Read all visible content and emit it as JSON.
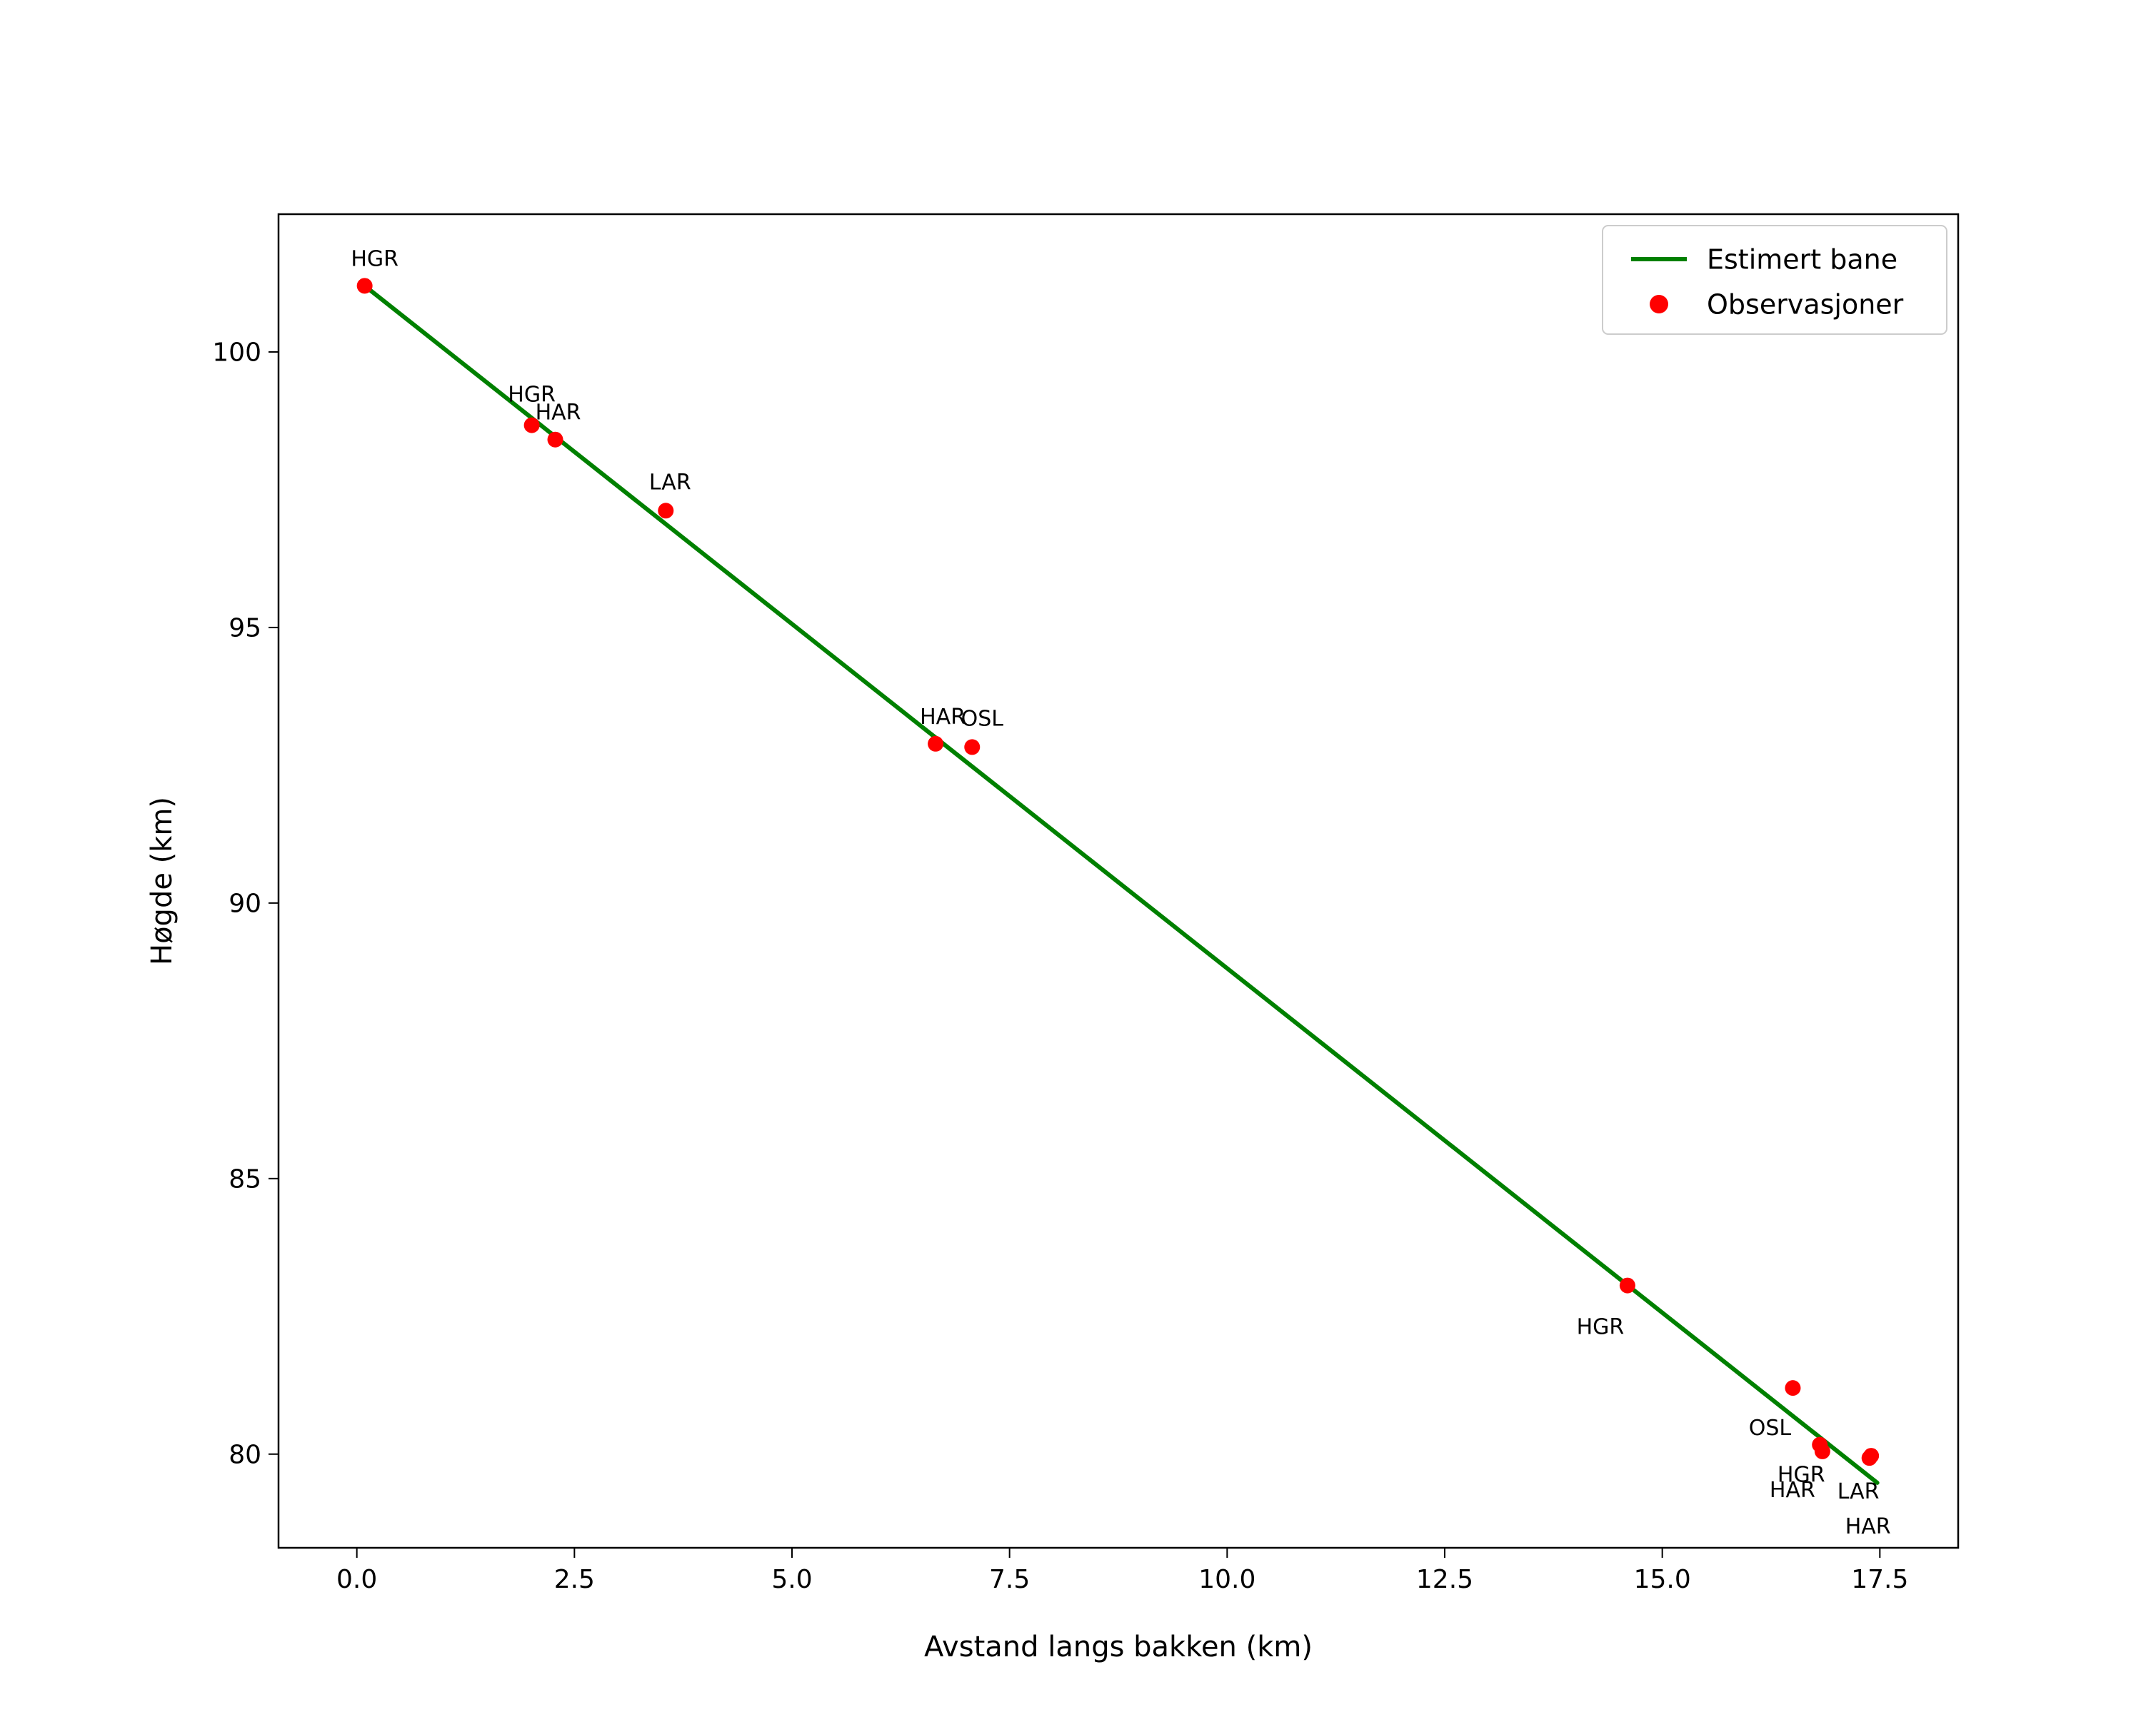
{
  "figure": {
    "background": "#ffffff"
  },
  "chart_data": {
    "type": "scatter",
    "title": "",
    "xlabel": "Avstand langs bakken (km)",
    "ylabel": "Høgde (km)",
    "xlim": [
      -0.9,
      18.4
    ],
    "ylim": [
      78.3,
      102.5
    ],
    "grid": false,
    "xticks": [
      "0.0",
      "2.5",
      "5.0",
      "7.5",
      "10.0",
      "12.5",
      "15.0",
      "17.5"
    ],
    "xtick_values": [
      0.0,
      2.5,
      5.0,
      7.5,
      10.0,
      12.5,
      15.0,
      17.5
    ],
    "yticks": [
      "80",
      "85",
      "90",
      "95",
      "100"
    ],
    "ytick_values": [
      80,
      85,
      90,
      95,
      100
    ],
    "legend": {
      "position": "top-right",
      "entries": [
        {
          "label": "Estimert bane",
          "glyph": "line",
          "color": "#008000"
        },
        {
          "label": "Observasjoner",
          "glyph": "dot",
          "color": "#ff0000"
        }
      ]
    },
    "line_series": {
      "name": "Estimert bane",
      "color": "#008000",
      "width": 6,
      "x": [
        0.09,
        17.47
      ],
      "y": [
        101.2,
        79.48
      ]
    },
    "scatter_series": {
      "name": "Observasjoner",
      "color": "#ff0000",
      "marker_radius": 11,
      "points": [
        {
          "x": 0.09,
          "y": 101.2,
          "label": "HGR",
          "ox": 14,
          "oy": -28
        },
        {
          "x": 2.01,
          "y": 98.67,
          "label": "HGR",
          "ox": 0,
          "oy": -33
        },
        {
          "x": 2.28,
          "y": 98.41,
          "label": "HAR",
          "ox": 4,
          "oy": -28
        },
        {
          "x": 3.55,
          "y": 97.12,
          "label": "LAR",
          "ox": 6,
          "oy": -30
        },
        {
          "x": 6.65,
          "y": 92.89,
          "label": "HAR",
          "ox": 10,
          "oy": -28
        },
        {
          "x": 7.07,
          "y": 92.83,
          "label": "OSL",
          "ox": 14,
          "oy": -30
        },
        {
          "x": 14.6,
          "y": 83.06,
          "label": "HGR",
          "ox": -38,
          "oy": 68
        },
        {
          "x": 16.5,
          "y": 81.2,
          "label": "OSL",
          "ox": -32,
          "oy": 66
        },
        {
          "x": 16.81,
          "y": 80.17,
          "label": "HGR",
          "ox": -26,
          "oy": 52
        },
        {
          "x": 16.84,
          "y": 80.05,
          "label": "HAR",
          "ox": -42,
          "oy": 64
        },
        {
          "x": 17.4,
          "y": 79.97,
          "label": "LAR",
          "ox": -18,
          "oy": 60
        },
        {
          "x": 17.38,
          "y": 79.93,
          "label": "HAR",
          "ox": -2,
          "oy": 106
        }
      ]
    }
  }
}
